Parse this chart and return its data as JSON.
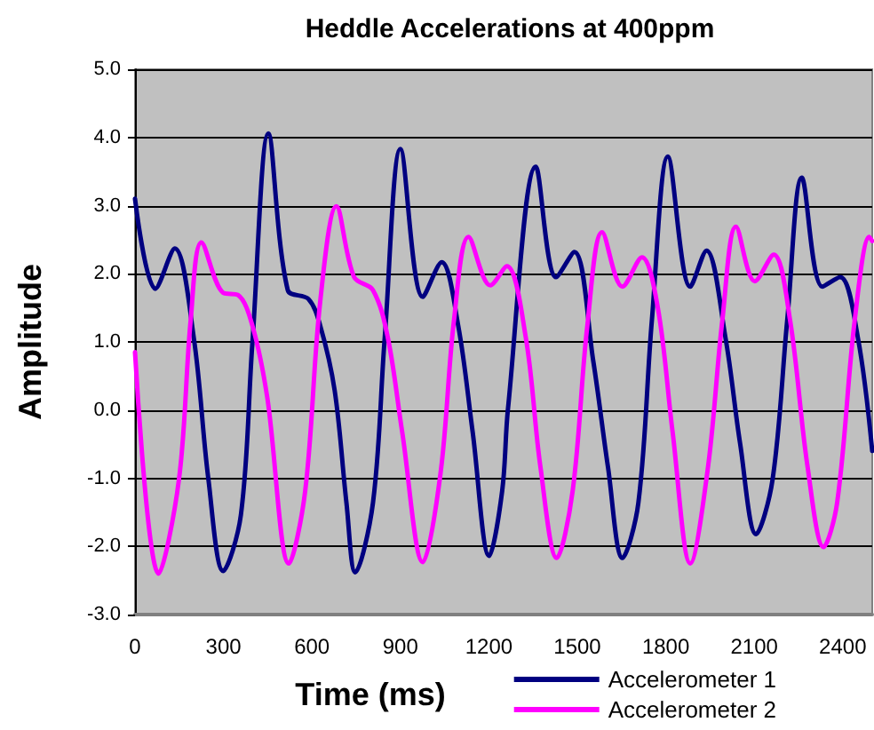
{
  "chart_data": {
    "type": "line",
    "title": "Heddle Accelerations at 400ppm",
    "xlabel": "Time (ms)",
    "ylabel": "Amplitude",
    "xlim": [
      0,
      2500
    ],
    "xticks": [
      0,
      300,
      600,
      900,
      1200,
      1500,
      1800,
      2100,
      2400
    ],
    "ylim": [
      -3,
      5
    ],
    "yticks": [
      {
        "value": -3,
        "label": "-3.0"
      },
      {
        "value": -2,
        "label": "-2.0"
      },
      {
        "value": -1,
        "label": "-1.0"
      },
      {
        "value": 0,
        "label": "0.0"
      },
      {
        "value": 1,
        "label": "1.0"
      },
      {
        "value": 2,
        "label": "2.0"
      },
      {
        "value": 3,
        "label": "3.0"
      },
      {
        "value": 4,
        "label": "4.0"
      },
      {
        "value": 5,
        "label": "5.0"
      }
    ],
    "grid": "y",
    "legend": "bottom right",
    "marker": "none",
    "line_style": "solid",
    "series": [
      {
        "name": "Accelerometer 1",
        "color": "#000080",
        "x": [
          0,
          69,
          135,
          199,
          249,
          299,
          359,
          398,
          452,
          518,
          588,
          628,
          677,
          717,
          747,
          807,
          847,
          900,
          976,
          1040,
          1096,
          1145,
          1201,
          1245,
          1265,
          1359,
          1428,
          1490,
          1554,
          1604,
          1653,
          1707,
          1753,
          1807,
          1883,
          1938,
          2002,
          2052,
          2106,
          2162,
          2212,
          2261,
          2331,
          2391,
          2451,
          2500
        ],
        "values": [
          3.1,
          1.78,
          2.37,
          1.07,
          -1.02,
          -2.36,
          -1.54,
          0.98,
          4.06,
          1.76,
          1.63,
          1.24,
          0.29,
          -1.36,
          -2.38,
          -1.36,
          1.07,
          3.83,
          1.66,
          2.17,
          1.24,
          -0.32,
          -2.14,
          -1.19,
          0.03,
          3.57,
          1.95,
          2.32,
          0.72,
          -0.84,
          -2.17,
          -1.36,
          1.33,
          3.72,
          1.81,
          2.34,
          1.07,
          -0.49,
          -1.82,
          -1.02,
          1.33,
          3.41,
          1.81,
          1.95,
          1.07,
          -0.6
        ]
      },
      {
        "name": "Accelerometer 2",
        "color": "#ff00ff",
        "x": [
          0,
          80,
          149,
          189,
          225,
          299,
          349,
          398,
          448,
          522,
          577,
          628,
          683,
          743,
          807,
          857,
          906,
          976,
          1036,
          1082,
          1131,
          1205,
          1261,
          1325,
          1375,
          1430,
          1484,
          1534,
          1584,
          1653,
          1719,
          1773,
          1823,
          1883,
          1943,
          1992,
          2038,
          2102,
          2166,
          2221,
          2281,
          2335,
          2381,
          2441,
          2490,
          2500
        ],
        "values": [
          0.85,
          -2.4,
          -1.02,
          1.33,
          2.46,
          1.72,
          1.69,
          1.24,
          0.2,
          -2.25,
          -1.19,
          1.59,
          2.99,
          1.95,
          1.76,
          1.07,
          -0.32,
          -2.23,
          -0.93,
          1.33,
          2.54,
          1.83,
          2.11,
          1.07,
          -0.84,
          -2.17,
          -1.19,
          1.24,
          2.61,
          1.81,
          2.24,
          1.5,
          -0.32,
          -2.25,
          -0.84,
          1.33,
          2.69,
          1.89,
          2.28,
          1.33,
          -0.84,
          -2.01,
          -1.36,
          1.33,
          2.54,
          2.48
        ]
      }
    ]
  }
}
